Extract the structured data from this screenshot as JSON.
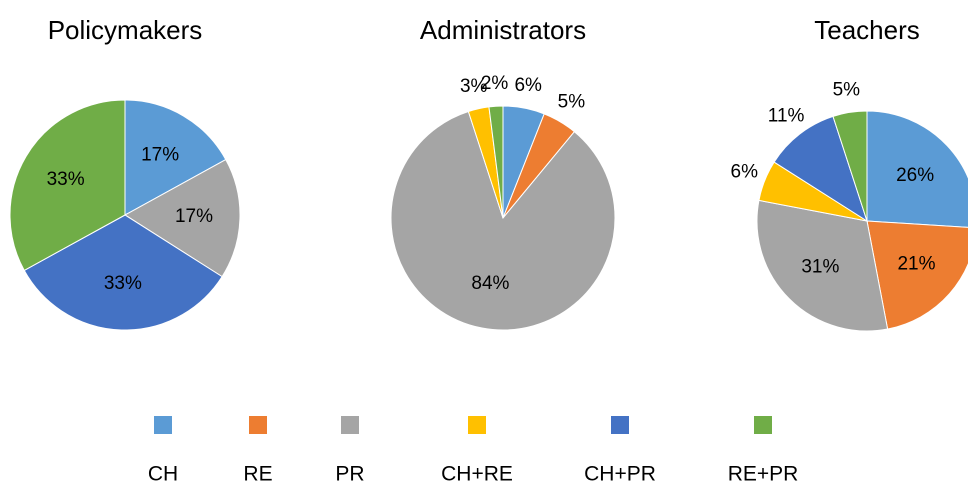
{
  "chart_data": [
    {
      "type": "pie",
      "title": "Policymakers",
      "categories": [
        "CH",
        "RE",
        "PR",
        "CH+RE",
        "CH+PR",
        "RE+PR"
      ],
      "values": [
        17,
        0,
        17,
        0,
        33,
        33
      ],
      "value_labels": [
        "17%",
        null,
        "17%",
        null,
        "33%",
        "33%"
      ],
      "colors": [
        "#5b9bd5",
        "#ed7d31",
        "#a5a5a5",
        "#ffc000",
        "#4472c4",
        "#70ad47"
      ]
    },
    {
      "type": "pie",
      "title": "Administrators",
      "categories": [
        "CH",
        "RE",
        "PR",
        "CH+RE",
        "CH+PR",
        "RE+PR"
      ],
      "values": [
        6,
        5,
        84,
        3,
        0,
        2
      ],
      "value_labels": [
        "6%",
        "5%",
        "84%",
        "3%",
        null,
        "2%"
      ],
      "colors": [
        "#5b9bd5",
        "#ed7d31",
        "#a5a5a5",
        "#ffc000",
        "#4472c4",
        "#70ad47"
      ]
    },
    {
      "type": "pie",
      "title": "Teachers",
      "categories": [
        "CH",
        "RE",
        "PR",
        "CH+RE",
        "CH+PR",
        "RE+PR"
      ],
      "values": [
        26,
        21,
        31,
        6,
        11,
        5
      ],
      "value_labels": [
        "26%",
        "21%",
        "31%",
        "6%",
        "11%",
        "5%"
      ],
      "colors": [
        "#5b9bd5",
        "#ed7d31",
        "#a5a5a5",
        "#ffc000",
        "#4472c4",
        "#70ad47"
      ]
    }
  ]
}
